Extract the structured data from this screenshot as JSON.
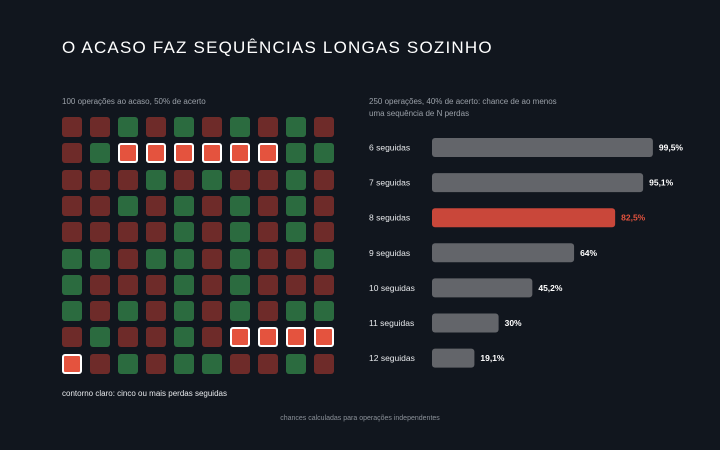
{
  "title": "O ACASO FAZ SEQUÊNCIAS LONGAS SOZINHO",
  "grid": {
    "caption": "100 operações ao acaso, 50% de acerto",
    "legend": "contorno claro: cinco ou mais perdas seguidas",
    "rows": [
      "LLWLWLWLWL",
      "LWHHHHHHWW",
      "LLLWLWLLWL",
      "LLWLWLWLWL",
      "LLLLWLWLWL",
      "WWLWWLWLLW",
      "WLLLWLWLLL",
      "WLWLWLWLWW",
      "LWLLWLHHHH",
      "HLWLWWLLWL"
    ],
    "colors": {
      "loss": "#6e2b29",
      "win": "#2b6b3f",
      "highlight": "#e4533e"
    }
  },
  "chart_data": {
    "type": "bar",
    "orientation": "horizontal",
    "caption": "250 operações, 40% de acerto: chance de ao menos uma sequência de N perdas",
    "categories": [
      "6 seguidas",
      "7 seguidas",
      "8 seguidas",
      "9 seguidas",
      "10 seguidas",
      "11 seguidas",
      "12 seguidas"
    ],
    "values": [
      99.5,
      95.1,
      82.5,
      64,
      45.2,
      30,
      19.1
    ],
    "value_labels": [
      "99,5%",
      "95,1%",
      "82,5%",
      "64%",
      "45,2%",
      "30%",
      "19,1%"
    ],
    "highlight_index": 2,
    "xlim": [
      0,
      100
    ],
    "colors": {
      "bar": "#63656a",
      "highlight": "#c9473a",
      "highlight_label": "#e4533e"
    }
  },
  "footnote": "chances calculadas para operações independentes"
}
